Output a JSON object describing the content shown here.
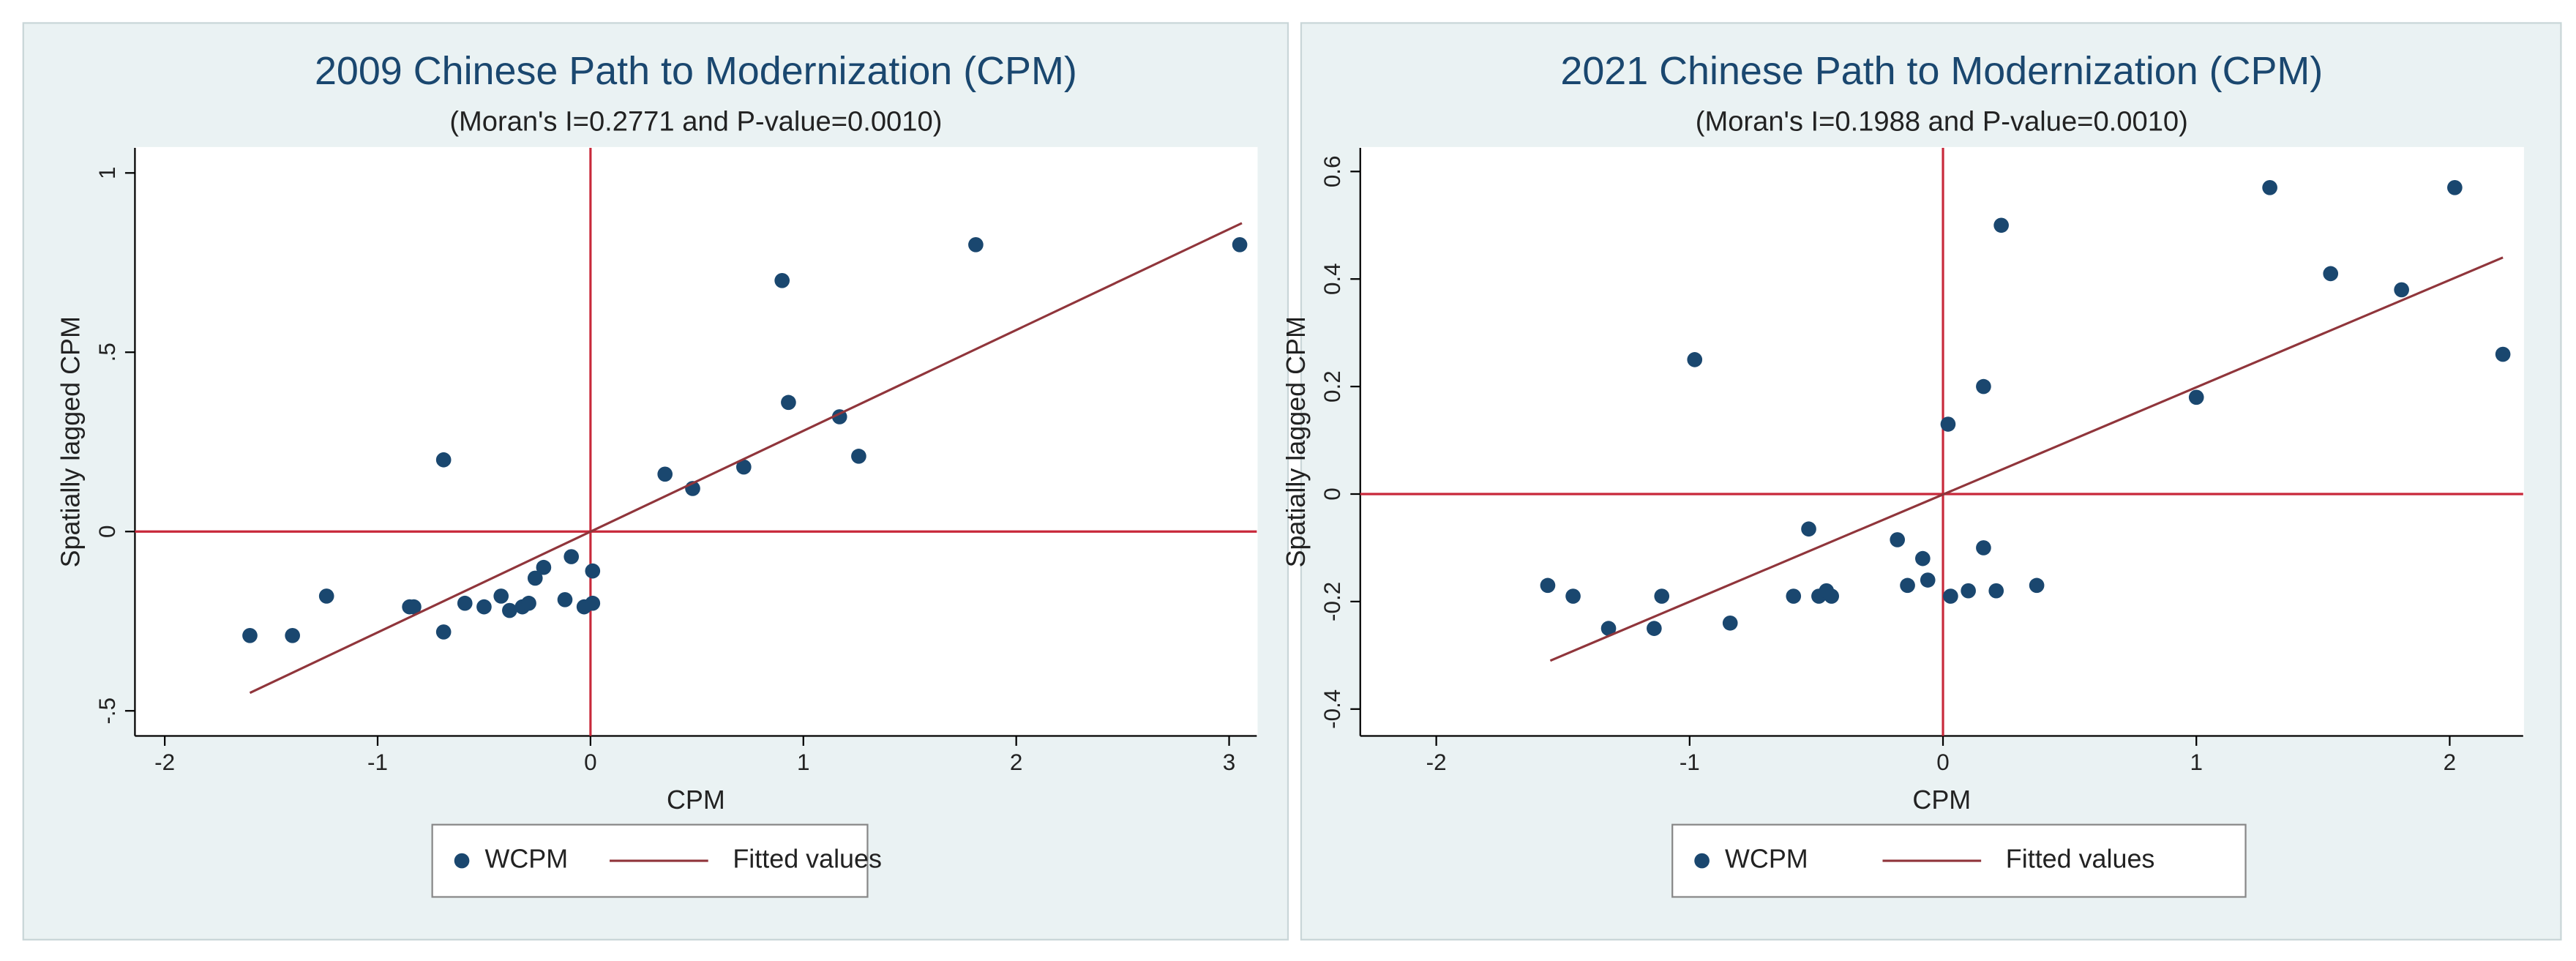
{
  "chart_data": [
    {
      "type": "scatter",
      "title": "2009 Chinese Path to Modernization (CPM)",
      "subtitle": "(Moran's I=0.2771 and P-value=0.0010)",
      "xlabel": "CPM",
      "ylabel": "Spatially lagged CPM",
      "xlim": [
        -2.14,
        3.13
      ],
      "ylim": [
        -0.57,
        1.07
      ],
      "xticks": [
        -2,
        -1,
        0,
        1,
        2,
        3
      ],
      "yticks": [
        {
          "value": -0.5,
          "label": "-.5"
        },
        0,
        {
          "value": 0.5,
          "label": ".5"
        },
        1
      ],
      "hline": 0,
      "vline": 0,
      "refline_color": "#c8283a",
      "series": [
        {
          "name": "WCPM",
          "type": "scatter",
          "color": "#1a476f",
          "x": [
            -1.6,
            -1.4,
            -1.24,
            -0.85,
            -0.83,
            -0.69,
            -0.69,
            -0.59,
            -0.5,
            -0.42,
            -0.38,
            -0.32,
            -0.29,
            -0.26,
            -0.22,
            -0.12,
            -0.09,
            -0.03,
            0.01,
            0.01,
            0.35,
            0.48,
            0.72,
            0.9,
            0.93,
            1.17,
            1.26,
            1.81,
            3.05
          ],
          "values": [
            -0.29,
            -0.29,
            -0.18,
            -0.21,
            -0.21,
            0.2,
            -0.28,
            -0.2,
            -0.21,
            -0.18,
            -0.22,
            -0.21,
            -0.2,
            -0.13,
            -0.1,
            -0.19,
            -0.07,
            -0.21,
            -0.2,
            -0.11,
            0.16,
            0.12,
            0.18,
            0.7,
            0.36,
            0.32,
            0.21,
            0.8,
            0.8
          ]
        },
        {
          "name": "Fitted values",
          "type": "line",
          "color": "#90353b",
          "x": [
            -1.6,
            3.06
          ],
          "values": [
            -0.45,
            0.86
          ]
        }
      ]
    },
    {
      "type": "scatter",
      "title": "2021 Chinese Path to Modernization (CPM)",
      "subtitle": "(Moran's I=0.1988 and P-value=0.0010)",
      "xlabel": "CPM",
      "ylabel": "Spatially lagged CPM",
      "xlim": [
        -2.3,
        2.29
      ],
      "ylim": [
        -0.45,
        0.644
      ],
      "xticks": [
        -2,
        -1,
        0,
        1,
        2
      ],
      "yticks": [
        -0.4,
        -0.2,
        0,
        0.2,
        0.4,
        0.6
      ],
      "hline": 0,
      "vline": 0,
      "refline_color": "#c8283a",
      "series": [
        {
          "name": "WCPM",
          "type": "scatter",
          "color": "#1a476f",
          "x": [
            -1.56,
            -1.46,
            -1.32,
            -1.11,
            -1.14,
            -0.98,
            -0.84,
            -0.59,
            -0.53,
            -0.49,
            -0.46,
            -0.44,
            -0.18,
            -0.14,
            -0.08,
            -0.06,
            0.02,
            0.03,
            0.1,
            0.16,
            0.16,
            0.21,
            0.23,
            0.37,
            1.0,
            1.29,
            1.53,
            1.81,
            2.02,
            2.21
          ],
          "values": [
            -0.17,
            -0.19,
            -0.25,
            -0.19,
            -0.25,
            0.25,
            -0.24,
            -0.19,
            -0.065,
            -0.19,
            -0.18,
            -0.19,
            -0.085,
            -0.17,
            -0.12,
            -0.16,
            0.13,
            -0.19,
            -0.18,
            0.2,
            -0.1,
            -0.18,
            0.5,
            -0.17,
            0.18,
            0.57,
            0.41,
            0.38,
            0.57,
            0.26
          ]
        },
        {
          "name": "Fitted values",
          "type": "line",
          "color": "#90353b",
          "x": [
            -1.55,
            2.21
          ],
          "values": [
            -0.31,
            0.44
          ]
        }
      ]
    }
  ]
}
